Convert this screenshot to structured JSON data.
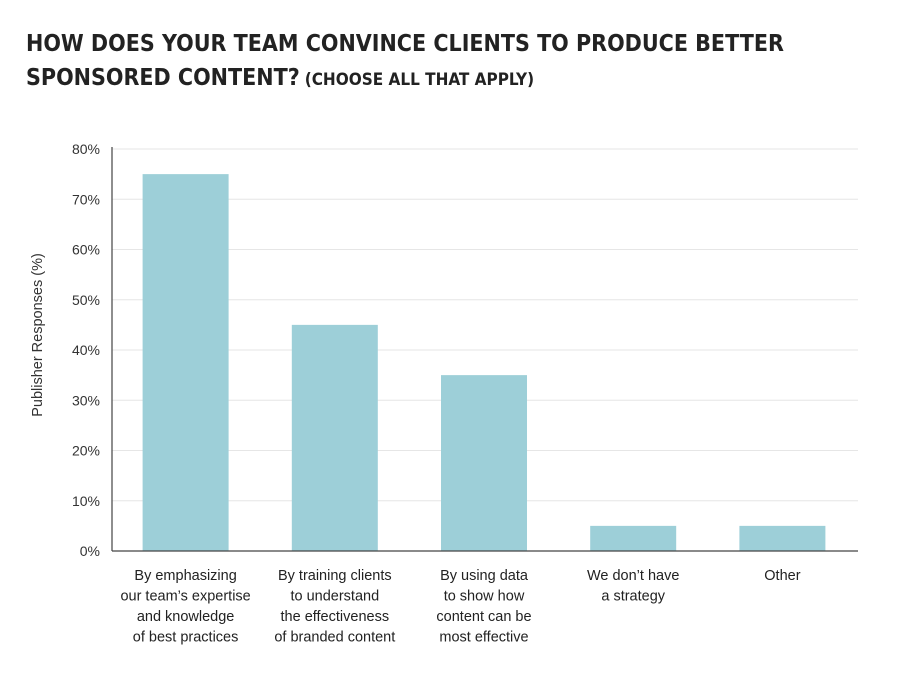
{
  "title": {
    "main": "HOW DOES YOUR TEAM CONVINCE CLIENTS TO PRODUCE BETTER SPONSORED CONTENT?",
    "sub": "(CHOOSE ALL THAT APPLY)"
  },
  "colors": {
    "bar": "#9dcfd8",
    "grid": "#e6e6e6",
    "axis": "#444444"
  },
  "chart_data": {
    "type": "bar",
    "title": "HOW DOES YOUR TEAM CONVINCE CLIENTS TO PRODUCE BETTER SPONSORED CONTENT? (CHOOSE ALL THAT APPLY)",
    "xlabel": "",
    "ylabel": "Publisher Responses (%)",
    "ylim": [
      0,
      80
    ],
    "yticks": [
      0,
      10,
      20,
      30,
      40,
      50,
      60,
      70,
      80
    ],
    "ytick_labels": [
      "0%",
      "10%",
      "20%",
      "30%",
      "40%",
      "50%",
      "60%",
      "70%",
      "80%"
    ],
    "grid": true,
    "categories": [
      [
        "By emphasizing",
        "our team’s expertise",
        "and knowledge",
        "of best practices"
      ],
      [
        "By training clients",
        "to understand",
        "the effectiveness",
        "of branded content"
      ],
      [
        "By using data",
        "to show how",
        "content can be",
        "most effective"
      ],
      [
        "We don’t have",
        "a strategy"
      ],
      [
        "Other"
      ]
    ],
    "values": [
      75,
      45,
      35,
      5,
      5
    ]
  }
}
